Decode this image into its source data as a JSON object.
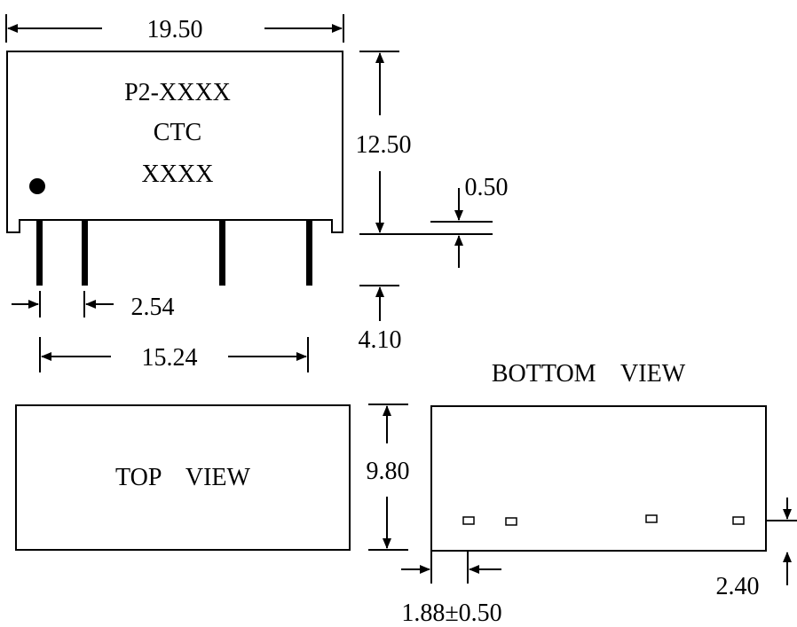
{
  "side_view": {
    "part_number": "P2-XXXX",
    "brand": "CTC",
    "code": "XXXX"
  },
  "dimensions": {
    "length": "19.50",
    "height": "12.50",
    "standoff": "0.50",
    "pin_pitch": "2.54",
    "pin_span": "15.24",
    "pin_length": "4.10",
    "width": "9.80",
    "pin_offset": "1.88±0.50",
    "pin_row": "2.40"
  },
  "views": {
    "top": "TOP    VIEW",
    "bottom": "BOTTOM    VIEW"
  }
}
